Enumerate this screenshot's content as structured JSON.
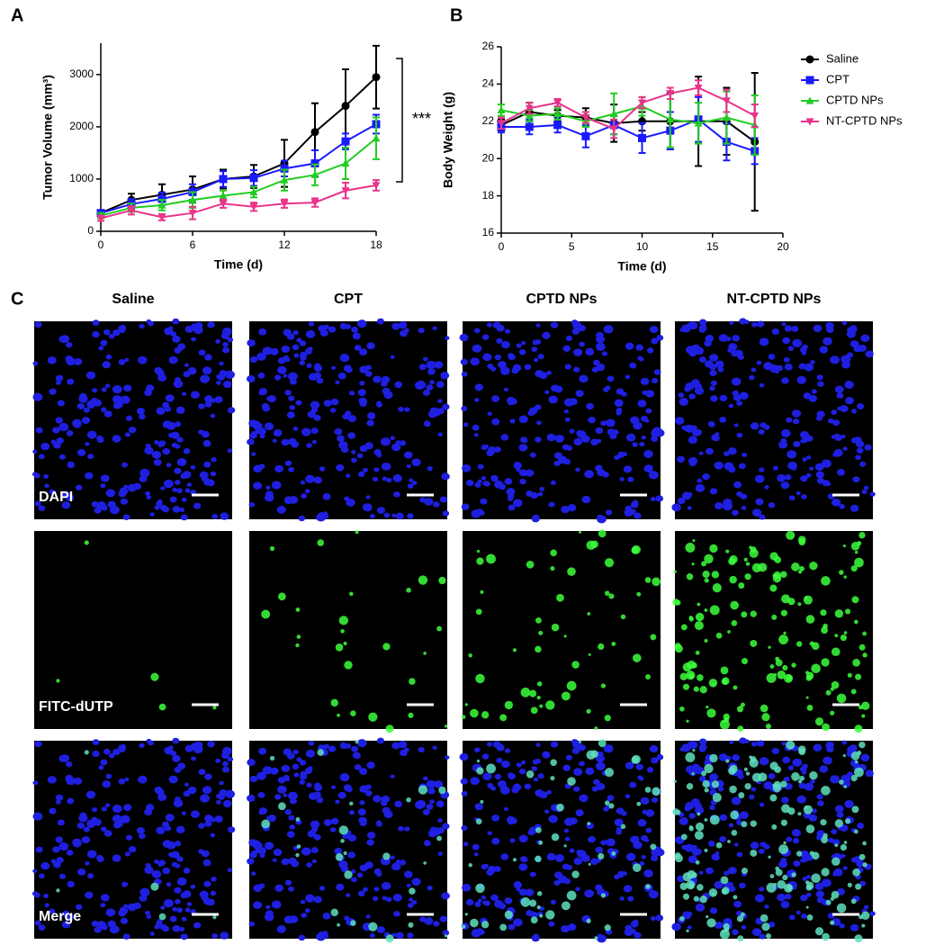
{
  "chart_data": [
    {
      "type": "line",
      "panel_label": "A",
      "xlabel": "Time (d)",
      "ylabel": "Tumor Volume (mm³)",
      "x": [
        0,
        2,
        4,
        6,
        8,
        10,
        12,
        14,
        16,
        18
      ],
      "xlim": [
        0,
        18
      ],
      "xticks": [
        0,
        6,
        12,
        18
      ],
      "ylim": [
        0,
        3600
      ],
      "yticks": [
        0,
        1000,
        2000,
        3000
      ],
      "annotation": "***",
      "series": [
        {
          "color": "#000000",
          "marker": "circle",
          "values": [
            350,
            600,
            700,
            800,
            1000,
            1050,
            1300,
            1900,
            2400,
            2950
          ],
          "errors": [
            50,
            120,
            200,
            250,
            180,
            220,
            450,
            550,
            700,
            600
          ]
        },
        {
          "color": "#1a1aff",
          "marker": "square",
          "values": [
            350,
            520,
            620,
            750,
            1000,
            1020,
            1200,
            1300,
            1720,
            2050
          ],
          "errors": [
            50,
            100,
            120,
            150,
            150,
            150,
            150,
            250,
            150,
            180
          ]
        },
        {
          "color": "#22cc22",
          "marker": "triangle-up",
          "values": [
            300,
            450,
            500,
            600,
            680,
            750,
            980,
            1080,
            1300,
            1780
          ],
          "errors": [
            50,
            80,
            100,
            150,
            100,
            100,
            200,
            200,
            300,
            400
          ]
        },
        {
          "color": "#e8348a",
          "marker": "triangle-down",
          "values": [
            250,
            400,
            270,
            350,
            530,
            470,
            530,
            550,
            780,
            880
          ],
          "errors": [
            50,
            80,
            60,
            120,
            80,
            80,
            80,
            80,
            150,
            100
          ]
        }
      ]
    },
    {
      "type": "line",
      "panel_label": "B",
      "xlabel": "Time (d)",
      "ylabel": "Body Weight (g)",
      "x": [
        0,
        2,
        4,
        6,
        8,
        10,
        12,
        14,
        16,
        18
      ],
      "xlim": [
        0,
        20
      ],
      "xticks": [
        0,
        5,
        10,
        15,
        20
      ],
      "ylim": [
        16,
        26
      ],
      "yticks": [
        16,
        18,
        20,
        22,
        24,
        26
      ],
      "legend": "right",
      "series": [
        {
          "name": "Saline",
          "color": "#000000",
          "marker": "circle",
          "values": [
            21.8,
            22.5,
            22.3,
            22.2,
            21.9,
            22.0,
            22.0,
            22.0,
            22.0,
            20.9
          ],
          "errors": [
            0.3,
            0.5,
            0.3,
            0.5,
            1.0,
            0.5,
            1.5,
            2.4,
            1.8,
            3.7
          ]
        },
        {
          "name": "CPT",
          "color": "#1a1aff",
          "marker": "square",
          "values": [
            21.7,
            21.7,
            21.8,
            21.2,
            21.8,
            21.1,
            21.5,
            22.1,
            20.9,
            20.4
          ],
          "errors": [
            0.3,
            0.4,
            0.4,
            0.6,
            0.5,
            0.8,
            1.0,
            1.2,
            1.0,
            0.7
          ]
        },
        {
          "name": "CPTD NPs",
          "color": "#22cc22",
          "marker": "triangle-up",
          "values": [
            22.6,
            22.3,
            22.4,
            22.0,
            22.4,
            22.8,
            22.1,
            21.9,
            22.2,
            21.8
          ],
          "errors": [
            0.3,
            0.3,
            0.3,
            0.3,
            1.1,
            0.5,
            1.5,
            1.1,
            1.4,
            1.6
          ]
        },
        {
          "name": "NT-CPTD NPs",
          "color": "#e8348a",
          "marker": "triangle-down",
          "values": [
            21.9,
            22.7,
            23.0,
            22.2,
            21.6,
            23.0,
            23.5,
            23.8,
            23.1,
            22.3
          ],
          "errors": [
            0.3,
            0.3,
            0.2,
            0.3,
            0.5,
            0.3,
            0.3,
            0.4,
            0.6,
            0.6
          ]
        }
      ]
    }
  ],
  "panel_c": {
    "panel_label": "C",
    "columns": [
      "Saline",
      "CPT",
      "CPTD NPs",
      "NT-CPTD NPs"
    ],
    "rows": [
      "DAPI",
      "FITC-dUTP",
      "Merge"
    ]
  }
}
